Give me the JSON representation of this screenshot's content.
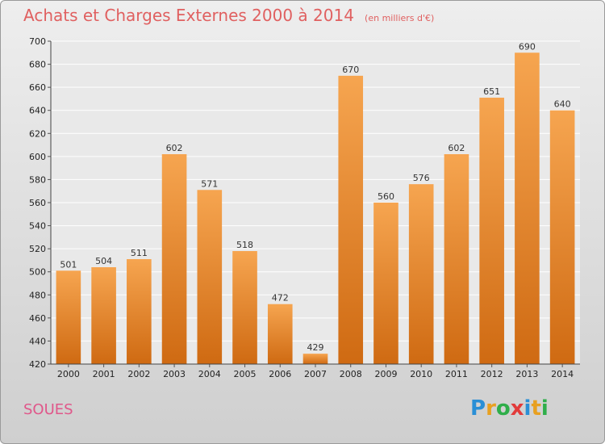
{
  "header": {
    "title": "Achats et Charges Externes 2000 à 2014",
    "subtitle": "(en milliers d'€)"
  },
  "footer": {
    "place": "SOUES",
    "logo_text": "Proxiti",
    "logo_letters": [
      "P",
      "r",
      "o",
      "x",
      "i",
      "t",
      "i"
    ],
    "logo_colors": [
      "#2a8fd6",
      "#e8a020",
      "#2fae4a",
      "#e23b3b",
      "#2a8fd6",
      "#e8a020",
      "#2fae4a"
    ]
  },
  "chart_data": {
    "type": "bar",
    "categories": [
      "2000",
      "2001",
      "2002",
      "2003",
      "2004",
      "2005",
      "2006",
      "2007",
      "2008",
      "2009",
      "2010",
      "2011",
      "2012",
      "2013",
      "2014"
    ],
    "values": [
      501,
      504,
      511,
      602,
      571,
      518,
      472,
      429,
      670,
      560,
      576,
      602,
      651,
      690,
      640
    ],
    "title": "Achats et Charges Externes 2000 à 2014",
    "subtitle": "(en milliers d'€)",
    "xlabel": "",
    "ylabel": "",
    "ylim": [
      420,
      700
    ],
    "yticks": [
      420,
      440,
      460,
      480,
      500,
      520,
      540,
      560,
      580,
      600,
      620,
      640,
      660,
      680,
      700
    ],
    "grid": true,
    "bar_color": "#f0922e"
  }
}
